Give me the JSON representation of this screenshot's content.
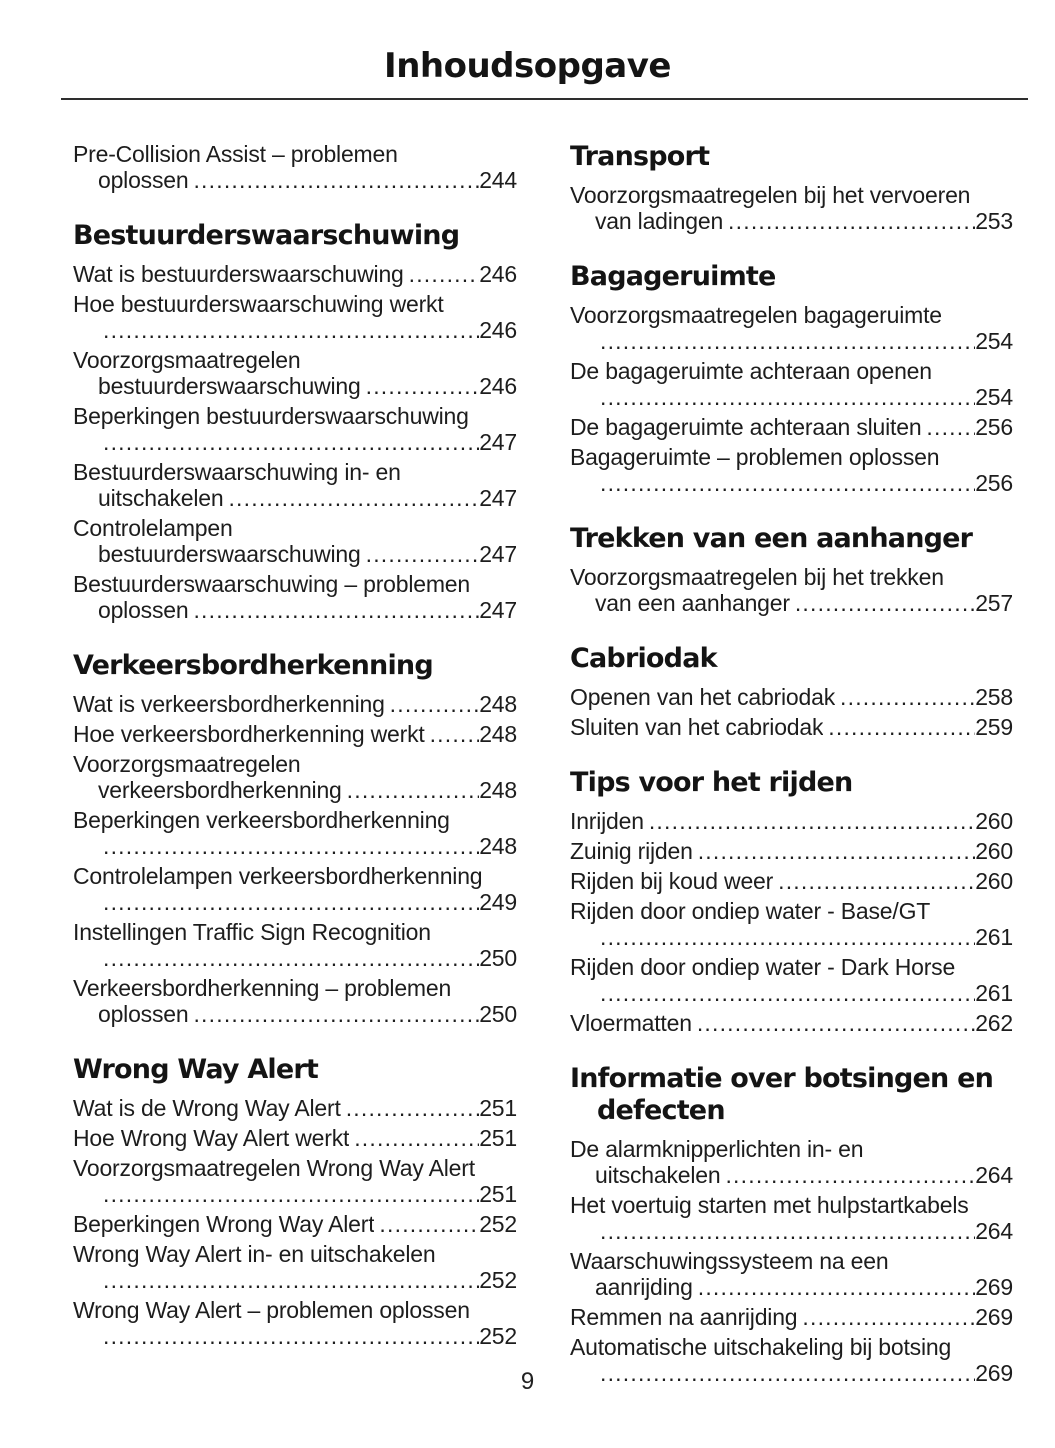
{
  "page": {
    "title": "Inhoudsopgave",
    "page_number": "9"
  },
  "colors": {
    "background": "#ffffff",
    "text": "#1d1d1d",
    "heading": "#141414",
    "divider": "#2e2e2e"
  },
  "columns": {
    "left": {
      "sections": [
        {
          "heading_lines": [],
          "entries": [
            {
              "rows": [
                {
                  "text": "Pre-Collision Assist – problemen",
                  "indent": false,
                  "page": null
                },
                {
                  "text": "oplossen",
                  "indent": true,
                  "page": "244"
                }
              ]
            }
          ]
        },
        {
          "heading_lines": [
            "Bestuurderswaarschuwing"
          ],
          "entries": [
            {
              "rows": [
                {
                  "text": "Wat is bestuurderswaarschuwing",
                  "indent": false,
                  "page": "246"
                }
              ]
            },
            {
              "rows": [
                {
                  "text": "Hoe bestuurderswaarschuwing werkt",
                  "indent": false,
                  "page": null
                },
                {
                  "text": "",
                  "indent": true,
                  "page": "246"
                }
              ]
            },
            {
              "rows": [
                {
                  "text": "Voorzorgsmaatregelen",
                  "indent": false,
                  "page": null
                },
                {
                  "text": "bestuurderswaarschuwing",
                  "indent": true,
                  "page": "246"
                }
              ]
            },
            {
              "rows": [
                {
                  "text": "Beperkingen bestuurderswaarschuwing",
                  "indent": false,
                  "page": null
                },
                {
                  "text": "",
                  "indent": true,
                  "page": "247"
                }
              ]
            },
            {
              "rows": [
                {
                  "text": "Bestuurderswaarschuwing in- en",
                  "indent": false,
                  "page": null
                },
                {
                  "text": "uitschakelen",
                  "indent": true,
                  "page": "247"
                }
              ]
            },
            {
              "rows": [
                {
                  "text": "Controlelampen",
                  "indent": false,
                  "page": null
                },
                {
                  "text": "bestuurderswaarschuwing",
                  "indent": true,
                  "page": "247"
                }
              ]
            },
            {
              "rows": [
                {
                  "text": "Bestuurderswaarschuwing – problemen",
                  "indent": false,
                  "page": null
                },
                {
                  "text": "oplossen",
                  "indent": true,
                  "page": "247"
                }
              ]
            }
          ]
        },
        {
          "heading_lines": [
            "Verkeersbordherkenning"
          ],
          "entries": [
            {
              "rows": [
                {
                  "text": "Wat is verkeersbordherkenning",
                  "indent": false,
                  "page": "248"
                }
              ]
            },
            {
              "rows": [
                {
                  "text": "Hoe verkeersbordherkenning werkt",
                  "indent": false,
                  "page": "248"
                }
              ]
            },
            {
              "rows": [
                {
                  "text": "Voorzorgsmaatregelen",
                  "indent": false,
                  "page": null
                },
                {
                  "text": "verkeersbordherkenning",
                  "indent": true,
                  "page": "248"
                }
              ]
            },
            {
              "rows": [
                {
                  "text": "Beperkingen verkeersbordherkenning",
                  "indent": false,
                  "page": null
                },
                {
                  "text": "",
                  "indent": true,
                  "page": "248"
                }
              ]
            },
            {
              "rows": [
                {
                  "text": "Controlelampen verkeersbordherkenning",
                  "indent": false,
                  "page": null
                },
                {
                  "text": "",
                  "indent": true,
                  "page": "249"
                }
              ]
            },
            {
              "rows": [
                {
                  "text": "Instellingen Traffic Sign Recognition",
                  "indent": false,
                  "page": null
                },
                {
                  "text": "",
                  "indent": true,
                  "page": "250"
                }
              ]
            },
            {
              "rows": [
                {
                  "text": "Verkeersbordherkenning – problemen",
                  "indent": false,
                  "page": null
                },
                {
                  "text": "oplossen",
                  "indent": true,
                  "page": "250"
                }
              ]
            }
          ]
        },
        {
          "heading_lines": [
            "Wrong Way Alert"
          ],
          "entries": [
            {
              "rows": [
                {
                  "text": "Wat is de Wrong Way Alert",
                  "indent": false,
                  "page": "251"
                }
              ]
            },
            {
              "rows": [
                {
                  "text": "Hoe Wrong Way Alert werkt",
                  "indent": false,
                  "page": "251"
                }
              ]
            },
            {
              "rows": [
                {
                  "text": "Voorzorgsmaatregelen Wrong Way Alert",
                  "indent": false,
                  "page": null
                },
                {
                  "text": "",
                  "indent": true,
                  "page": "251"
                }
              ]
            },
            {
              "rows": [
                {
                  "text": "Beperkingen Wrong Way Alert",
                  "indent": false,
                  "page": "252"
                }
              ]
            },
            {
              "rows": [
                {
                  "text": "Wrong Way Alert in- en uitschakelen",
                  "indent": false,
                  "page": null
                },
                {
                  "text": "",
                  "indent": true,
                  "page": "252"
                }
              ]
            },
            {
              "rows": [
                {
                  "text": "Wrong Way Alert – problemen oplossen",
                  "indent": false,
                  "page": null
                },
                {
                  "text": "",
                  "indent": true,
                  "page": "252"
                }
              ]
            }
          ]
        }
      ]
    },
    "right": {
      "sections": [
        {
          "heading_lines": [
            "Transport"
          ],
          "entries": [
            {
              "rows": [
                {
                  "text": "Voorzorgsmaatregelen bij het vervoeren",
                  "indent": false,
                  "page": null
                },
                {
                  "text": "van ladingen",
                  "indent": true,
                  "page": "253"
                }
              ]
            }
          ]
        },
        {
          "heading_lines": [
            "Bagageruimte"
          ],
          "entries": [
            {
              "rows": [
                {
                  "text": "Voorzorgsmaatregelen bagageruimte",
                  "indent": false,
                  "page": null
                },
                {
                  "text": "",
                  "indent": true,
                  "page": "254"
                }
              ]
            },
            {
              "rows": [
                {
                  "text": "De bagageruimte achteraan openen",
                  "indent": false,
                  "page": null
                },
                {
                  "text": "",
                  "indent": true,
                  "page": "254"
                }
              ]
            },
            {
              "rows": [
                {
                  "text": "De bagageruimte achteraan sluiten",
                  "indent": false,
                  "page": "256"
                }
              ]
            },
            {
              "rows": [
                {
                  "text": "Bagageruimte – problemen oplossen",
                  "indent": false,
                  "page": null
                },
                {
                  "text": "",
                  "indent": true,
                  "page": "256"
                }
              ]
            }
          ]
        },
        {
          "heading_lines": [
            "Trekken van een aanhanger"
          ],
          "entries": [
            {
              "rows": [
                {
                  "text": "Voorzorgsmaatregelen bij het trekken",
                  "indent": false,
                  "page": null
                },
                {
                  "text": "van een aanhanger",
                  "indent": true,
                  "page": "257"
                }
              ]
            }
          ]
        },
        {
          "heading_lines": [
            "Cabriodak"
          ],
          "entries": [
            {
              "rows": [
                {
                  "text": "Openen van het cabriodak",
                  "indent": false,
                  "page": "258"
                }
              ]
            },
            {
              "rows": [
                {
                  "text": "Sluiten van het cabriodak",
                  "indent": false,
                  "page": "259"
                }
              ]
            }
          ]
        },
        {
          "heading_lines": [
            "Tips voor het rijden"
          ],
          "entries": [
            {
              "rows": [
                {
                  "text": "Inrijden",
                  "indent": false,
                  "page": "260"
                }
              ]
            },
            {
              "rows": [
                {
                  "text": "Zuinig rijden",
                  "indent": false,
                  "page": "260"
                }
              ]
            },
            {
              "rows": [
                {
                  "text": "Rijden bij koud weer",
                  "indent": false,
                  "page": "260"
                }
              ]
            },
            {
              "rows": [
                {
                  "text": "Rijden door ondiep water - Base/GT",
                  "indent": false,
                  "page": null
                },
                {
                  "text": "",
                  "indent": true,
                  "page": "261"
                }
              ]
            },
            {
              "rows": [
                {
                  "text": "Rijden door ondiep water - Dark Horse",
                  "indent": false,
                  "page": null
                },
                {
                  "text": "",
                  "indent": true,
                  "page": "261"
                }
              ]
            },
            {
              "rows": [
                {
                  "text": "Vloermatten",
                  "indent": false,
                  "page": "262"
                }
              ]
            }
          ]
        },
        {
          "heading_lines": [
            "Informatie over botsingen en",
            "defecten"
          ],
          "entries": [
            {
              "rows": [
                {
                  "text": "De alarmknipperlichten in- en",
                  "indent": false,
                  "page": null
                },
                {
                  "text": "uitschakelen",
                  "indent": true,
                  "page": "264"
                }
              ]
            },
            {
              "rows": [
                {
                  "text": "Het voertuig starten met hulpstartkabels",
                  "indent": false,
                  "page": null
                },
                {
                  "text": "",
                  "indent": true,
                  "page": "264"
                }
              ]
            },
            {
              "rows": [
                {
                  "text": "Waarschuwingssysteem na een",
                  "indent": false,
                  "page": null
                },
                {
                  "text": "aanrijding",
                  "indent": true,
                  "page": "269"
                }
              ]
            },
            {
              "rows": [
                {
                  "text": "Remmen na aanrijding",
                  "indent": false,
                  "page": "269"
                }
              ]
            },
            {
              "rows": [
                {
                  "text": "Automatische uitschakeling bij botsing",
                  "indent": false,
                  "page": null
                },
                {
                  "text": "",
                  "indent": true,
                  "page": "269"
                }
              ]
            }
          ]
        }
      ]
    }
  }
}
